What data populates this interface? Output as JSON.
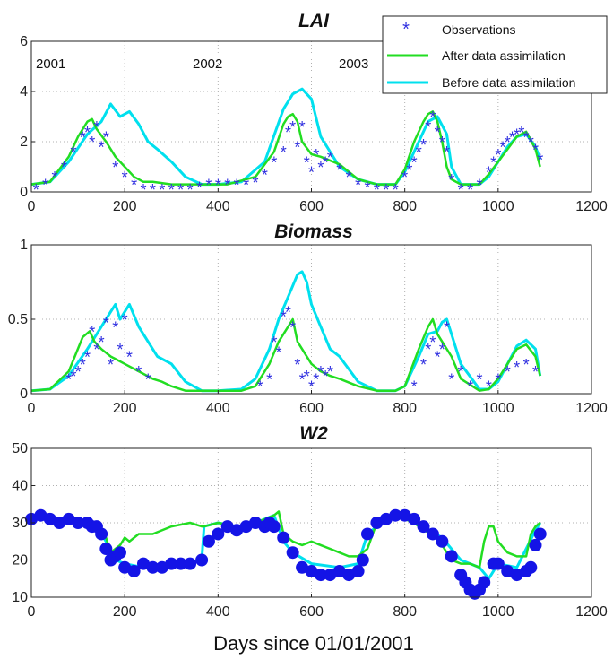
{
  "figure": {
    "xlabel": "Days since 01/01/2001",
    "colors": {
      "observations": "#3030e0",
      "after": "#22dd22",
      "before": "#00e0ee",
      "w2_obs": "#1414e6"
    }
  },
  "chart_data": [
    {
      "type": "line",
      "title": "LAI",
      "xlim": [
        0,
        1200
      ],
      "ylim": [
        0,
        6
      ],
      "xticks": [
        "0",
        "200",
        "400",
        "600",
        "800",
        "1000",
        "1200"
      ],
      "yticks": [
        "0",
        "2",
        "4",
        "6"
      ],
      "grid": true,
      "legend_position": "top-right",
      "legend": [
        "Observations",
        "After data assimilation",
        "Before data assimilation"
      ],
      "annotations": [
        {
          "text": "2001",
          "x": 30,
          "y": 5.5
        },
        {
          "text": "2002",
          "x": 360,
          "y": 5.5
        },
        {
          "text": "2003",
          "x": 730,
          "y": 5.5
        }
      ],
      "series": [
        {
          "name": "Before data assimilation",
          "x": [
            0,
            40,
            80,
            120,
            150,
            170,
            190,
            210,
            230,
            250,
            270,
            300,
            330,
            365,
            400,
            450,
            500,
            540,
            560,
            580,
            600,
            620,
            660,
            700,
            740,
            780,
            800,
            830,
            850,
            870,
            890,
            900,
            920,
            960,
            980,
            1000,
            1020,
            1040,
            1060,
            1080,
            1090
          ],
          "y": [
            0.3,
            0.4,
            1.2,
            2.3,
            2.8,
            3.5,
            3.0,
            3.2,
            2.7,
            2.0,
            1.7,
            1.2,
            0.6,
            0.3,
            0.3,
            0.4,
            1.2,
            3.3,
            3.9,
            4.1,
            3.7,
            2.2,
            1.0,
            0.5,
            0.3,
            0.3,
            0.8,
            2.0,
            2.8,
            3.0,
            2.3,
            1.0,
            0.3,
            0.3,
            0.6,
            1.2,
            1.8,
            2.2,
            2.3,
            1.8,
            1.3
          ]
        },
        {
          "name": "After data assimilation",
          "x": [
            0,
            40,
            80,
            100,
            120,
            130,
            140,
            160,
            180,
            200,
            220,
            240,
            260,
            300,
            365,
            420,
            480,
            520,
            540,
            550,
            560,
            570,
            580,
            600,
            620,
            660,
            700,
            740,
            780,
            800,
            820,
            840,
            850,
            860,
            870,
            880,
            890,
            900,
            920,
            960,
            980,
            1000,
            1020,
            1040,
            1060,
            1080,
            1090
          ],
          "y": [
            0.3,
            0.4,
            1.4,
            2.2,
            2.8,
            2.9,
            2.5,
            2.0,
            1.4,
            1.0,
            0.6,
            0.4,
            0.4,
            0.3,
            0.3,
            0.3,
            0.6,
            1.6,
            2.7,
            3.0,
            3.1,
            2.8,
            2.0,
            1.5,
            1.4,
            1.1,
            0.5,
            0.3,
            0.3,
            0.9,
            2.0,
            2.8,
            3.1,
            3.2,
            2.8,
            2.0,
            1.0,
            0.5,
            0.3,
            0.3,
            0.7,
            1.2,
            1.7,
            2.2,
            2.4,
            1.7,
            1.0
          ]
        },
        {
          "name": "Observations",
          "x": [
            10,
            30,
            50,
            70,
            90,
            110,
            120,
            130,
            140,
            150,
            160,
            180,
            200,
            220,
            240,
            260,
            280,
            300,
            320,
            340,
            360,
            380,
            400,
            420,
            440,
            460,
            480,
            500,
            520,
            540,
            550,
            560,
            570,
            580,
            590,
            600,
            610,
            620,
            630,
            640,
            660,
            680,
            700,
            720,
            740,
            760,
            780,
            800,
            810,
            820,
            830,
            840,
            850,
            860,
            870,
            880,
            890,
            900,
            920,
            940,
            960,
            980,
            990,
            1000,
            1010,
            1020,
            1030,
            1040,
            1050,
            1060,
            1070,
            1080,
            1090
          ],
          "y": [
            0.1,
            0.3,
            0.6,
            1.0,
            1.6,
            2.2,
            2.4,
            2.0,
            2.6,
            1.8,
            2.2,
            1.0,
            0.6,
            0.3,
            0.1,
            0.1,
            0.1,
            0.1,
            0.1,
            0.1,
            0.2,
            0.3,
            0.3,
            0.3,
            0.3,
            0.3,
            0.4,
            0.7,
            1.2,
            1.6,
            2.4,
            2.6,
            1.8,
            2.6,
            1.2,
            0.8,
            1.5,
            1.0,
            1.2,
            1.4,
            0.9,
            0.6,
            0.3,
            0.2,
            0.1,
            0.1,
            0.1,
            0.6,
            0.9,
            1.2,
            1.6,
            1.9,
            2.6,
            3.0,
            2.4,
            2.0,
            1.6,
            0.5,
            0.1,
            0.1,
            0.3,
            0.8,
            1.2,
            1.5,
            1.8,
            2.0,
            2.2,
            2.3,
            2.4,
            2.2,
            2.0,
            1.7,
            1.3
          ]
        }
      ]
    },
    {
      "type": "line",
      "title": "Biomass",
      "xlim": [
        0,
        1200
      ],
      "ylim": [
        0,
        1
      ],
      "xticks": [
        "0",
        "200",
        "400",
        "600",
        "800",
        "1000",
        "1200"
      ],
      "yticks": [
        "0",
        "0.5",
        "1"
      ],
      "grid": true,
      "series": [
        {
          "name": "Before data assimilation",
          "x": [
            0,
            40,
            80,
            120,
            150,
            170,
            180,
            190,
            200,
            210,
            230,
            250,
            270,
            300,
            330,
            365,
            400,
            450,
            480,
            510,
            530,
            550,
            570,
            580,
            590,
            600,
            620,
            640,
            660,
            700,
            740,
            780,
            800,
            830,
            850,
            870,
            880,
            890,
            900,
            920,
            960,
            980,
            1000,
            1020,
            1040,
            1060,
            1080,
            1090
          ],
          "y": [
            0.02,
            0.03,
            0.12,
            0.3,
            0.45,
            0.55,
            0.6,
            0.5,
            0.55,
            0.6,
            0.45,
            0.35,
            0.25,
            0.2,
            0.08,
            0.02,
            0.02,
            0.03,
            0.1,
            0.3,
            0.5,
            0.65,
            0.8,
            0.82,
            0.75,
            0.6,
            0.45,
            0.3,
            0.25,
            0.08,
            0.02,
            0.02,
            0.05,
            0.25,
            0.4,
            0.42,
            0.48,
            0.5,
            0.4,
            0.2,
            0.03,
            0.03,
            0.08,
            0.2,
            0.32,
            0.36,
            0.3,
            0.12
          ]
        },
        {
          "name": "After data assimilation",
          "x": [
            0,
            40,
            80,
            110,
            125,
            135,
            150,
            170,
            200,
            230,
            260,
            280,
            300,
            330,
            365,
            400,
            450,
            480,
            510,
            530,
            550,
            560,
            570,
            580,
            600,
            620,
            640,
            660,
            700,
            740,
            780,
            800,
            830,
            850,
            860,
            870,
            880,
            890,
            900,
            920,
            960,
            980,
            1000,
            1020,
            1040,
            1060,
            1080,
            1090
          ],
          "y": [
            0.02,
            0.03,
            0.15,
            0.38,
            0.42,
            0.35,
            0.3,
            0.25,
            0.2,
            0.15,
            0.1,
            0.08,
            0.05,
            0.02,
            0.02,
            0.02,
            0.02,
            0.05,
            0.2,
            0.35,
            0.45,
            0.5,
            0.35,
            0.3,
            0.2,
            0.15,
            0.12,
            0.1,
            0.05,
            0.02,
            0.02,
            0.05,
            0.3,
            0.45,
            0.5,
            0.4,
            0.35,
            0.3,
            0.25,
            0.1,
            0.02,
            0.03,
            0.1,
            0.2,
            0.3,
            0.33,
            0.25,
            0.12
          ]
        },
        {
          "name": "Observations",
          "x": [
            80,
            90,
            100,
            110,
            120,
            130,
            140,
            150,
            160,
            170,
            180,
            190,
            200,
            210,
            230,
            250,
            490,
            510,
            520,
            530,
            540,
            550,
            560,
            570,
            580,
            590,
            600,
            610,
            620,
            630,
            640,
            820,
            840,
            850,
            860,
            870,
            880,
            890,
            900,
            920,
            940,
            960,
            980,
            1000,
            1020,
            1040,
            1060,
            1080
          ],
          "y": [
            0.1,
            0.12,
            0.15,
            0.2,
            0.25,
            0.42,
            0.3,
            0.35,
            0.48,
            0.2,
            0.45,
            0.3,
            0.5,
            0.25,
            0.15,
            0.1,
            0.05,
            0.1,
            0.35,
            0.28,
            0.52,
            0.55,
            0.45,
            0.2,
            0.1,
            0.12,
            0.05,
            0.1,
            0.15,
            0.12,
            0.15,
            0.05,
            0.2,
            0.3,
            0.35,
            0.25,
            0.3,
            0.45,
            0.1,
            0.15,
            0.05,
            0.1,
            0.05,
            0.1,
            0.15,
            0.18,
            0.2,
            0.15
          ]
        }
      ]
    },
    {
      "type": "line",
      "title": "W2",
      "xlim": [
        0,
        1200
      ],
      "ylim": [
        10,
        50
      ],
      "xticks": [
        "0",
        "200",
        "400",
        "600",
        "800",
        "1000",
        "1200"
      ],
      "yticks": [
        "10",
        "20",
        "30",
        "40",
        "50"
      ],
      "grid": true,
      "series": [
        {
          "name": "After data assimilation",
          "x": [
            0,
            50,
            100,
            140,
            160,
            170,
            180,
            190,
            200,
            210,
            230,
            260,
            300,
            340,
            365,
            370,
            400,
            440,
            480,
            500,
            520,
            530,
            540,
            560,
            580,
            600,
            620,
            640,
            660,
            680,
            700,
            720,
            740,
            760,
            780,
            800,
            820,
            840,
            860,
            880,
            900,
            920,
            940,
            960,
            970,
            980,
            990,
            1000,
            1020,
            1040,
            1060,
            1070,
            1080,
            1090
          ],
          "y": [
            31,
            31,
            30,
            29,
            26,
            22,
            23,
            24,
            26,
            25,
            27,
            27,
            29,
            30,
            29,
            29,
            30,
            29,
            30,
            31,
            32,
            33,
            27,
            25,
            24,
            25,
            24,
            23,
            22,
            21,
            21,
            23,
            30,
            31,
            32,
            31,
            30,
            28,
            27,
            24,
            20,
            19,
            19,
            18,
            25,
            29,
            29,
            25,
            22,
            21,
            21,
            27,
            29,
            30
          ]
        },
        {
          "name": "Before data assimilation",
          "x": [
            0,
            50,
            100,
            140,
            160,
            170,
            180,
            200,
            240,
            300,
            365,
            370,
            400,
            440,
            480,
            520,
            540,
            560,
            600,
            660,
            700,
            720,
            760,
            800,
            840,
            880,
            920,
            960,
            980,
            1000,
            1040,
            1080,
            1090
          ],
          "y": [
            31,
            31,
            30,
            29,
            25,
            21,
            20,
            19,
            18,
            19,
            20,
            29,
            30,
            29,
            30,
            32,
            25,
            22,
            19,
            18,
            19,
            27,
            31,
            32,
            29,
            26,
            20,
            18,
            15,
            19,
            18,
            28,
            30
          ]
        },
        {
          "name": "Observations",
          "x": [
            0,
            20,
            40,
            60,
            80,
            100,
            120,
            130,
            140,
            150,
            160,
            170,
            180,
            190,
            200,
            220,
            240,
            260,
            280,
            300,
            320,
            340,
            365,
            380,
            400,
            420,
            440,
            460,
            480,
            500,
            510,
            520,
            540,
            560,
            580,
            600,
            620,
            640,
            660,
            680,
            700,
            710,
            720,
            740,
            760,
            780,
            800,
            820,
            840,
            860,
            880,
            900,
            920,
            930,
            940,
            950,
            960,
            970,
            990,
            1000,
            1020,
            1040,
            1060,
            1070,
            1080,
            1090
          ],
          "y": [
            31,
            32,
            31,
            30,
            31,
            30,
            30,
            29,
            29,
            27,
            23,
            20,
            21,
            22,
            18,
            17,
            19,
            18,
            18,
            19,
            19,
            19,
            20,
            25,
            27,
            29,
            28,
            29,
            30,
            29,
            30,
            29,
            26,
            22,
            18,
            17,
            16,
            16,
            17,
            16,
            17,
            20,
            27,
            30,
            31,
            32,
            32,
            31,
            29,
            27,
            25,
            21,
            16,
            14,
            12,
            11,
            12,
            14,
            19,
            19,
            17,
            16,
            17,
            18,
            24,
            27
          ]
        }
      ]
    }
  ]
}
